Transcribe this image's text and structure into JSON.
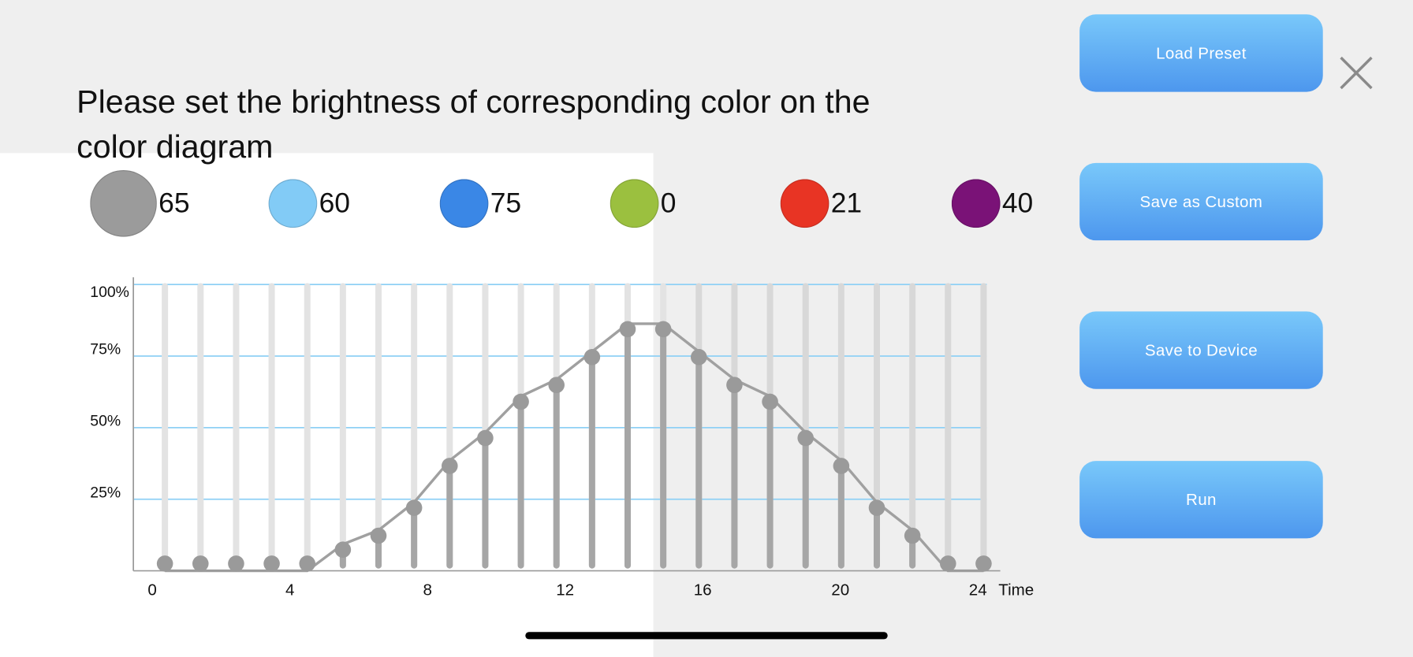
{
  "title": "Please set the brightness of corresponding color on the color diagram",
  "colors": [
    {
      "name": "gray",
      "hex": "#9b9b9b",
      "value": "65",
      "selected": true
    },
    {
      "name": "light-blue",
      "hex": "#82cbf6",
      "value": "60"
    },
    {
      "name": "blue",
      "hex": "#3a87e6",
      "value": "75"
    },
    {
      "name": "green",
      "hex": "#9bc03f",
      "value": "0"
    },
    {
      "name": "red",
      "hex": "#e83424",
      "value": "21"
    },
    {
      "name": "purple",
      "hex": "#7a1277",
      "value": "40"
    }
  ],
  "buttons": {
    "load_preset": "Load Preset",
    "save_custom": "Save as Custom",
    "save_device": "Save to Device",
    "run": "Run"
  },
  "close_icon": "close-icon",
  "chart_data": {
    "type": "line",
    "xlabel": "Time",
    "x_ticks": [
      "0",
      "4",
      "8",
      "12",
      "16",
      "20",
      "24"
    ],
    "y_ticks": [
      "25%",
      "50%",
      "75%",
      "100%"
    ],
    "ylim": [
      0,
      100
    ],
    "series": [
      {
        "name": "gray",
        "color": "#999999",
        "values": [
          0,
          0,
          0,
          0,
          0,
          5,
          10,
          20,
          35,
          45,
          58,
          64,
          74,
          84,
          84,
          74,
          64,
          58,
          45,
          35,
          20,
          10,
          0,
          0
        ]
      }
    ]
  }
}
